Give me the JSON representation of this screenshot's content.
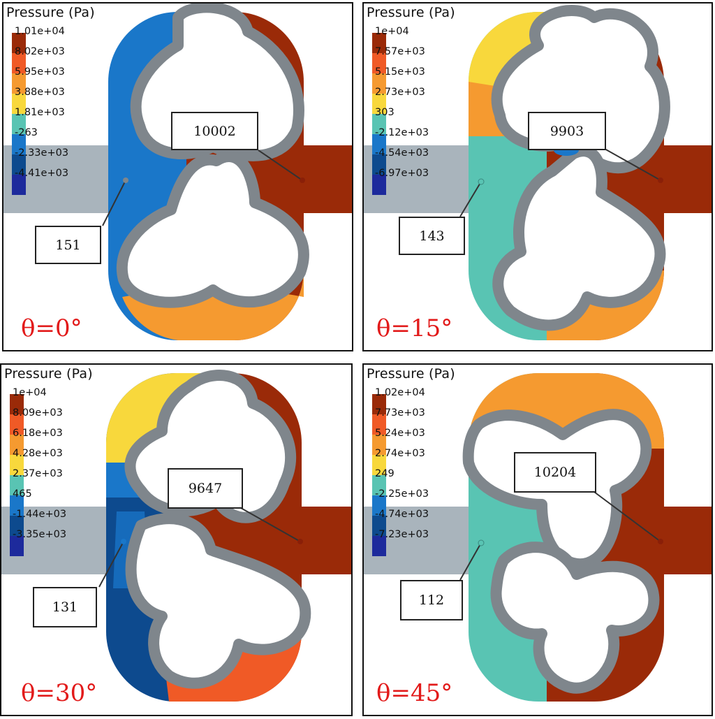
{
  "panels": [
    {
      "title": "Pressure (Pa)",
      "legend": [
        "1.01e+04",
        "8.02e+03",
        "5.95e+03",
        "3.88e+03",
        "1.81e+03",
        "-263",
        "-2.33e+03",
        "-4.41e+03"
      ],
      "angle": "θ=0°",
      "probe_inlet": "151",
      "probe_outlet": "10002"
    },
    {
      "title": "Pressure (Pa)",
      "legend": [
        "1e+04",
        "7.57e+03",
        "5.15e+03",
        "2.73e+03",
        "303",
        "-2.12e+03",
        "-4.54e+03",
        "-6.97e+03"
      ],
      "angle": "θ=15°",
      "probe_inlet": "143",
      "probe_outlet": "9903"
    },
    {
      "title": "Pressure (Pa)",
      "legend": [
        "1e+04",
        "8.09e+03",
        "6.18e+03",
        "4.28e+03",
        "2.37e+03",
        "465",
        "-1.44e+03",
        "-3.35e+03"
      ],
      "angle": "θ=30°",
      "probe_inlet": "131",
      "probe_outlet": "9647"
    },
    {
      "title": "Pressure (Pa)",
      "legend": [
        "1.02e+04",
        "7.73e+03",
        "5.24e+03",
        "2.74e+03",
        "249",
        "-2.25e+03",
        "-4.74e+03",
        "-7.23e+03"
      ],
      "angle": "θ=45°",
      "probe_inlet": "112",
      "probe_outlet": "10204"
    }
  ],
  "colormap": [
    "#9a2a08",
    "#f05a26",
    "#f59a30",
    "#f8d83c",
    "#59c4b3",
    "#1a77c9",
    "#0d4a8e",
    "#1d2a9c"
  ],
  "colors": {
    "inlet_outlet_gray": "#a9b4bc",
    "rotor_gray": "#7f868c",
    "angle_red": "#e21a1a"
  }
}
